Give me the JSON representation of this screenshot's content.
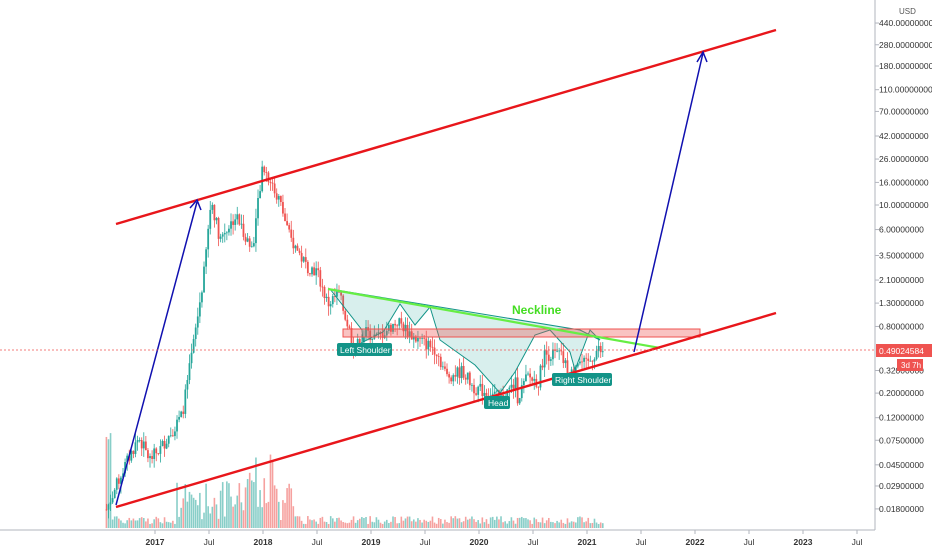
{
  "chart_data": {
    "type": "candlestick",
    "currency": "USD",
    "price_axis": {
      "scale": "log",
      "ticks": [
        "680.00000000",
        "440.00000000",
        "280.00000000",
        "180.00000000",
        "110.00000000",
        "70.00000000",
        "42.00000000",
        "26.00000000",
        "16.00000000",
        "10.00000000",
        "6.00000000",
        "3.50000000",
        "2.10000000",
        "1.30000000",
        "0.80000000",
        "0.49024584",
        "0.32000000",
        "0.20000000",
        "0.12000000",
        "0.07500000",
        "0.04500000",
        "0.02900000",
        "0.01800000"
      ],
      "current_price": "0.49024584",
      "countdown": "3d 7h"
    },
    "time_axis": {
      "ticks": [
        "2017",
        "Jul",
        "2018",
        "Jul",
        "2019",
        "Jul",
        "2020",
        "Jul",
        "2021",
        "Jul",
        "2022",
        "Jul",
        "2023",
        "Jul"
      ]
    },
    "annotations": {
      "neckline": "Neckline",
      "left_shoulder": "Left Shoulder",
      "head": "Head",
      "right_shoulder": "Right Shoulder"
    },
    "colors": {
      "up": "#26a69a",
      "down": "#ef5350",
      "channel": "#e8161b",
      "arrow": "#1010b0",
      "neckline": "#66ee44",
      "label_bg": "#139488",
      "price_tag": "#ef5350"
    },
    "price_path_log10": [
      -1.75,
      -1.4,
      -1.1,
      -1.3,
      -1.2,
      -1.05,
      -0.9,
      -0.3,
      0.35,
      1.05,
      0.7,
      0.9,
      0.6,
      1.35,
      1.25,
      1.05,
      0.7,
      0.45,
      0.4,
      0.1,
      0.2,
      -0.3,
      -0.15,
      -0.2,
      -0.05,
      -0.2,
      -0.25,
      -0.3,
      -0.55,
      -0.5,
      -0.65,
      -0.7,
      -0.75,
      -0.6,
      -0.85,
      -0.55,
      -0.6,
      -0.35,
      -0.35,
      -0.55,
      -0.4,
      -0.45,
      -0.3,
      -0.35
    ],
    "price_path_time": [
      2016.55,
      2016.7,
      2016.85,
      2016.95,
      2017.05,
      2017.15,
      2017.25,
      2017.35,
      2017.45,
      2017.52,
      2017.6,
      2017.75,
      2017.9,
      2018.0,
      2018.05,
      2018.15,
      2018.25,
      2018.4,
      2018.5,
      2018.6,
      2018.7,
      2018.85,
      2018.95,
      2019.05,
      2019.25,
      2019.4,
      2019.5,
      2019.6,
      2019.7,
      2019.85,
      2019.95,
      2020.1,
      2020.2,
      2020.35,
      2020.3,
      2020.45,
      2020.55,
      2020.6,
      2020.75,
      2020.85,
      2020.9,
      2021.0,
      2021.1,
      2021.15
    ]
  }
}
